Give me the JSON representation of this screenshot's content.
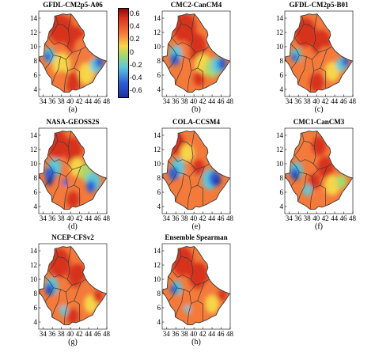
{
  "colors": {
    "red": "#d7301f",
    "orange": "#f47a3a",
    "yellow": "#f6d54a",
    "green": "#a9d86a",
    "cyan": "#5fc7d9",
    "blue": "#2e5fd6",
    "darkblue": "#1d2f9e",
    "boundary": "#3a3a3a",
    "background": "#ffffff"
  },
  "colorbar": {
    "ticks": [
      "0.6",
      "0.4",
      "0.2",
      "0",
      "-0.2",
      "-0.4",
      "-0.6"
    ],
    "overlap_labels": [
      "14",
      "12",
      "10",
      "8",
      "6",
      "4"
    ]
  },
  "axes": {
    "x_ticks": [
      "34",
      "36",
      "38",
      "40",
      "42",
      "44",
      "46",
      "48"
    ],
    "y_ticks": [
      "14",
      "12",
      "10",
      "8",
      "6",
      "4"
    ]
  },
  "panels": [
    {
      "title": "GFDL-CM2p5-A06",
      "label": "(a)",
      "pattern": "a"
    },
    {
      "title": "CMC2-CanCM4",
      "label": "(b)",
      "pattern": "b"
    },
    {
      "title": "GFDL-CM2p5-B01",
      "label": "(c)",
      "pattern": "c"
    },
    {
      "title": "NASA-GEOSS2S",
      "label": "(d)",
      "pattern": "d"
    },
    {
      "title": "COLA-CCSM4",
      "label": "(e)",
      "pattern": "e"
    },
    {
      "title": "CMC1-CanCM3",
      "label": "(f)",
      "pattern": "f"
    },
    {
      "title": "NCEP-CFSv2",
      "label": "(g)",
      "pattern": "g"
    },
    {
      "title": "Ensemble Spearman",
      "label": "(h)",
      "pattern": "h"
    }
  ]
}
